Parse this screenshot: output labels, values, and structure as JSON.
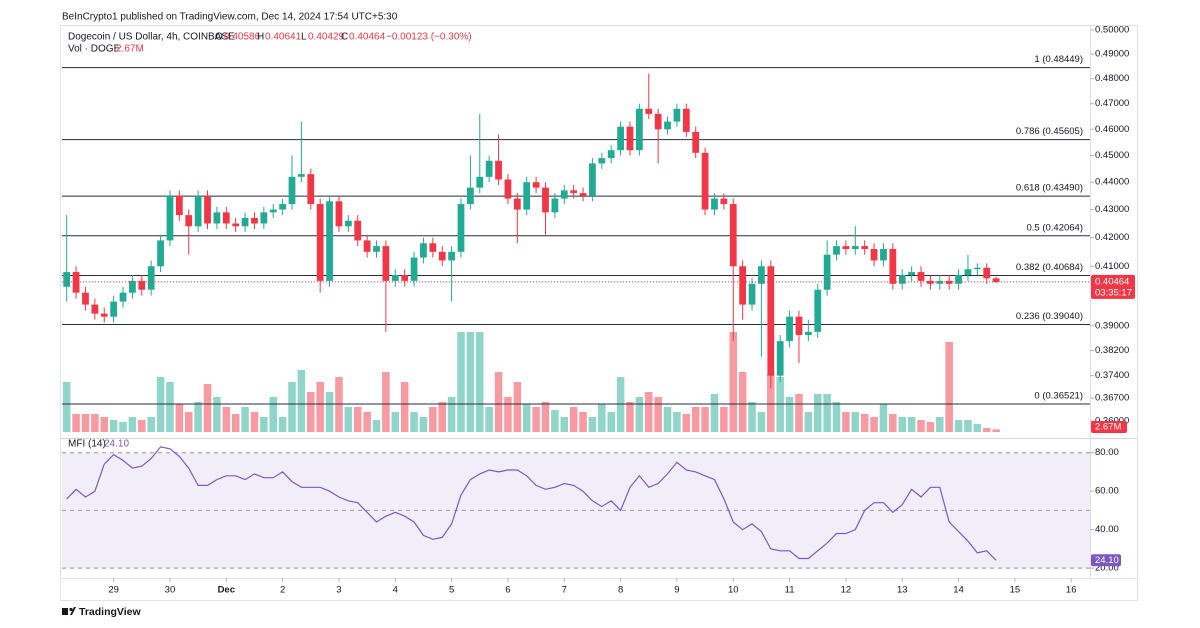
{
  "header": {
    "published": "BeInCrypto1 published on TradingView.com, Dec 14, 2024 17:54 UTC+5:30"
  },
  "footer": {
    "brand": "TradingView"
  },
  "chart_data": {
    "type": "candlestick",
    "title": "Dogecoin / US Dollar, 4h, COINBASE",
    "ohlc_letters": [
      "O",
      "H",
      "L",
      "C"
    ],
    "change_text": "−0.00123 (−0.30%)",
    "countdown": "03:35:17",
    "up_color": "#22ab94",
    "down_color": "#f23645",
    "log_scale": true,
    "grid": false,
    "xlim": [
      -0.5,
      109
    ],
    "xticks": [
      {
        "value": 5,
        "label": "29"
      },
      {
        "value": 11,
        "label": "30"
      },
      {
        "value": 17,
        "label": "Dec"
      },
      {
        "value": 23,
        "label": "2"
      },
      {
        "value": 29,
        "label": "3"
      },
      {
        "value": 35,
        "label": "4"
      },
      {
        "value": 41,
        "label": "5"
      },
      {
        "value": 47,
        "label": "6"
      },
      {
        "value": 53,
        "label": "7"
      },
      {
        "value": 59,
        "label": "8"
      },
      {
        "value": 65,
        "label": "9"
      },
      {
        "value": 71,
        "label": "10"
      },
      {
        "value": 77,
        "label": "11"
      },
      {
        "value": 83,
        "label": "12"
      },
      {
        "value": 89,
        "label": "13"
      },
      {
        "value": 95,
        "label": "14"
      },
      {
        "value": 101,
        "label": "15"
      },
      {
        "value": 107,
        "label": "16"
      }
    ],
    "ylim": [
      0.3567,
      0.5034
    ],
    "yticks": [
      {
        "value": 0.5,
        "label": "0.50000"
      },
      {
        "value": 0.49,
        "label": "0.49000"
      },
      {
        "value": 0.48,
        "label": "0.48000"
      },
      {
        "value": 0.47,
        "label": "0.47000"
      },
      {
        "value": 0.46,
        "label": "0.46000"
      },
      {
        "value": 0.45,
        "label": "0.45000"
      },
      {
        "value": 0.44,
        "label": "0.44000"
      },
      {
        "value": 0.43,
        "label": "0.43000"
      },
      {
        "value": 0.42,
        "label": "0.42000"
      },
      {
        "value": 0.41,
        "label": "0.41000"
      },
      {
        "value": 0.39,
        "label": "0.39000"
      },
      {
        "value": 0.382,
        "label": "0.38200"
      },
      {
        "value": 0.374,
        "label": "0.37400"
      },
      {
        "value": 0.367,
        "label": "0.36700"
      },
      {
        "value": 0.36,
        "label": "0.36000"
      }
    ],
    "fib_levels": [
      {
        "value": 0.48449,
        "label": "1 (0.48449)"
      },
      {
        "value": 0.45605,
        "label": "0.786 (0.45605)"
      },
      {
        "value": 0.4349,
        "label": "0.618 (0.43490)"
      },
      {
        "value": 0.42064,
        "label": "0.5 (0.42064)"
      },
      {
        "value": 0.40684,
        "label": "0.382 (0.40684)"
      },
      {
        "value": 0.3904,
        "label": "0.236 (0.39040)"
      },
      {
        "value": 0.36521,
        "label": "0 (0.36521)"
      }
    ],
    "candles": {
      "open": [
        0.403,
        0.408,
        0.401,
        0.397,
        0.394,
        0.393,
        0.398,
        0.401,
        0.405,
        0.402,
        0.41,
        0.419,
        0.435,
        0.428,
        0.424,
        0.435,
        0.425,
        0.429,
        0.425,
        0.424,
        0.427,
        0.425,
        0.429,
        0.43,
        0.432,
        0.442,
        0.443,
        0.432,
        0.405,
        0.433,
        0.424,
        0.426,
        0.419,
        0.415,
        0.417,
        0.405,
        0.407,
        0.405,
        0.413,
        0.418,
        0.415,
        0.412,
        0.415,
        0.432,
        0.438,
        0.442,
        0.448,
        0.441,
        0.434,
        0.43,
        0.44,
        0.438,
        0.429,
        0.434,
        0.437,
        0.436,
        0.435,
        0.447,
        0.449,
        0.452,
        0.461,
        0.452,
        0.468,
        0.466,
        0.46,
        0.463,
        0.468,
        0.459,
        0.451,
        0.43,
        0.434,
        0.432,
        0.41,
        0.397,
        0.404,
        0.41,
        0.374,
        0.385,
        0.393,
        0.387,
        0.388,
        0.402,
        0.414,
        0.417,
        0.416,
        0.417,
        0.416,
        0.412,
        0.416,
        0.404,
        0.407,
        0.408,
        0.405,
        0.404,
        0.405,
        0.404,
        0.407,
        0.409,
        0.4095,
        0.40586
      ],
      "high": [
        0.428,
        0.41,
        0.403,
        0.399,
        0.396,
        0.4,
        0.403,
        0.407,
        0.407,
        0.412,
        0.421,
        0.437,
        0.437,
        0.43,
        0.437,
        0.437,
        0.431,
        0.431,
        0.427,
        0.429,
        0.429,
        0.431,
        0.432,
        0.434,
        0.45,
        0.463,
        0.445,
        0.434,
        0.435,
        0.435,
        0.428,
        0.428,
        0.421,
        0.419,
        0.419,
        0.409,
        0.409,
        0.415,
        0.42,
        0.42,
        0.417,
        0.417,
        0.434,
        0.45,
        0.466,
        0.45,
        0.458,
        0.443,
        0.436,
        0.442,
        0.442,
        0.44,
        0.436,
        0.439,
        0.439,
        0.438,
        0.449,
        0.451,
        0.454,
        0.463,
        0.463,
        0.47,
        0.482,
        0.468,
        0.465,
        0.47,
        0.47,
        0.461,
        0.453,
        0.436,
        0.436,
        0.434,
        0.412,
        0.406,
        0.412,
        0.412,
        0.387,
        0.395,
        0.395,
        0.392,
        0.404,
        0.419,
        0.419,
        0.419,
        0.424,
        0.419,
        0.418,
        0.418,
        0.418,
        0.409,
        0.41,
        0.41,
        0.407,
        0.407,
        0.407,
        0.409,
        0.414,
        0.411,
        0.411,
        0.40641
      ],
      "low": [
        0.398,
        0.399,
        0.395,
        0.392,
        0.391,
        0.391,
        0.396,
        0.399,
        0.4,
        0.4,
        0.408,
        0.417,
        0.426,
        0.414,
        0.422,
        0.423,
        0.423,
        0.423,
        0.422,
        0.422,
        0.423,
        0.423,
        0.427,
        0.428,
        0.43,
        0.44,
        0.43,
        0.401,
        0.403,
        0.422,
        0.422,
        0.417,
        0.413,
        0.413,
        0.388,
        0.403,
        0.403,
        0.403,
        0.411,
        0.413,
        0.41,
        0.398,
        0.413,
        0.43,
        0.436,
        0.44,
        0.439,
        0.432,
        0.418,
        0.428,
        0.436,
        0.421,
        0.427,
        0.432,
        0.434,
        0.433,
        0.433,
        0.445,
        0.447,
        0.45,
        0.45,
        0.45,
        0.464,
        0.447,
        0.458,
        0.461,
        0.457,
        0.449,
        0.428,
        0.428,
        0.43,
        0.385,
        0.392,
        0.395,
        0.38,
        0.37,
        0.372,
        0.383,
        0.378,
        0.385,
        0.386,
        0.4,
        0.412,
        0.414,
        0.414,
        0.414,
        0.41,
        0.41,
        0.402,
        0.402,
        0.405,
        0.403,
        0.402,
        0.402,
        0.402,
        0.402,
        0.405,
        0.407,
        0.404,
        0.40429
      ],
      "close": [
        0.408,
        0.401,
        0.397,
        0.394,
        0.393,
        0.398,
        0.401,
        0.405,
        0.402,
        0.41,
        0.419,
        0.435,
        0.428,
        0.424,
        0.435,
        0.425,
        0.429,
        0.425,
        0.424,
        0.427,
        0.425,
        0.429,
        0.43,
        0.432,
        0.442,
        0.443,
        0.432,
        0.405,
        0.433,
        0.424,
        0.426,
        0.419,
        0.415,
        0.417,
        0.405,
        0.407,
        0.405,
        0.413,
        0.418,
        0.415,
        0.412,
        0.415,
        0.432,
        0.438,
        0.442,
        0.448,
        0.441,
        0.434,
        0.43,
        0.44,
        0.438,
        0.429,
        0.434,
        0.437,
        0.436,
        0.435,
        0.447,
        0.449,
        0.452,
        0.461,
        0.452,
        0.468,
        0.466,
        0.46,
        0.463,
        0.468,
        0.459,
        0.451,
        0.43,
        0.434,
        0.432,
        0.41,
        0.397,
        0.404,
        0.41,
        0.374,
        0.385,
        0.393,
        0.387,
        0.388,
        0.402,
        0.414,
        0.417,
        0.416,
        0.417,
        0.416,
        0.412,
        0.416,
        0.404,
        0.407,
        0.408,
        0.405,
        0.404,
        0.405,
        0.404,
        0.407,
        0.409,
        0.4095,
        0.40586,
        0.40464
      ]
    },
    "volume": {
      "name": "Vol · DOGE",
      "values": [
        50,
        18,
        18,
        18,
        15,
        12,
        10,
        15,
        12,
        15,
        55,
        50,
        28,
        20,
        30,
        48,
        35,
        25,
        18,
        25,
        20,
        15,
        35,
        15,
        50,
        62,
        40,
        50,
        40,
        55,
        25,
        25,
        20,
        12,
        60,
        20,
        50,
        20,
        15,
        25,
        30,
        35,
        100,
        100,
        100,
        25,
        60,
        35,
        50,
        28,
        25,
        30,
        22,
        15,
        25,
        20,
        15,
        28,
        20,
        55,
        30,
        35,
        40,
        35,
        25,
        20,
        18,
        25,
        25,
        38,
        25,
        100,
        60,
        30,
        20,
        58,
        55,
        35,
        38,
        20,
        38,
        38,
        30,
        20,
        20,
        18,
        15,
        28,
        18,
        15,
        15,
        12,
        10,
        15,
        90,
        12,
        12,
        8,
        4,
        2.67
      ],
      "value_labels": [
        null,
        null,
        null,
        null,
        null,
        null,
        null,
        null,
        null,
        null,
        null,
        null,
        null,
        null,
        null,
        null,
        null,
        null,
        null,
        null,
        null,
        null,
        null,
        null,
        null,
        null,
        null,
        null,
        null,
        null,
        null,
        null,
        null,
        null,
        null,
        null,
        null,
        null,
        null,
        null,
        null,
        null,
        null,
        null,
        null,
        null,
        null,
        null,
        null,
        null,
        null,
        null,
        null,
        null,
        null,
        null,
        null,
        null,
        null,
        null,
        null,
        null,
        null,
        null,
        null,
        null,
        null,
        null,
        null,
        null,
        null,
        null,
        null,
        null,
        null,
        null,
        null,
        null,
        null,
        null,
        null,
        null,
        null,
        null,
        null,
        null,
        null,
        null,
        null,
        null,
        null,
        null,
        null,
        null,
        null,
        null,
        null,
        null,
        null,
        "2.67M"
      ]
    },
    "mfi": {
      "name": "MFI (14)",
      "color": "#7e57c2",
      "ylim": [
        18,
        84
      ],
      "yticks": [
        {
          "value": 80,
          "label": "80.00"
        },
        {
          "value": 60,
          "label": "60.00"
        },
        {
          "value": 40,
          "label": "40.00"
        },
        {
          "value": 20,
          "label": "20.00"
        }
      ],
      "bands": {
        "upper": 80,
        "middle": 50,
        "lower": 20
      },
      "values": [
        56,
        61,
        57,
        60,
        74,
        79,
        76,
        72,
        73,
        77,
        83,
        82,
        78,
        72,
        63,
        63,
        66,
        68,
        68,
        66,
        69,
        67,
        67,
        70,
        65,
        62,
        62,
        62,
        60,
        57,
        55,
        54,
        49,
        44,
        47,
        49,
        47,
        44,
        37,
        35,
        36,
        43,
        58,
        66,
        69,
        71,
        70,
        71,
        71,
        68,
        63,
        61,
        62,
        64,
        63,
        60,
        55,
        52,
        55,
        50,
        62,
        68,
        62,
        64,
        69,
        75,
        71,
        70,
        68,
        66,
        56,
        44,
        40,
        43,
        39,
        30,
        29,
        29,
        25,
        25,
        29,
        33,
        38,
        38,
        40,
        50,
        54,
        54,
        49,
        53,
        61,
        57,
        62,
        62,
        44,
        39,
        34,
        28,
        29,
        24.1
      ],
      "value_labels": [
        null,
        null,
        null,
        null,
        null,
        null,
        null,
        null,
        null,
        null,
        null,
        null,
        null,
        null,
        null,
        null,
        null,
        null,
        null,
        null,
        null,
        null,
        null,
        null,
        null,
        null,
        null,
        null,
        null,
        null,
        null,
        null,
        null,
        null,
        null,
        null,
        null,
        null,
        null,
        null,
        null,
        null,
        null,
        null,
        null,
        null,
        null,
        null,
        null,
        null,
        null,
        null,
        null,
        null,
        null,
        null,
        null,
        null,
        null,
        null,
        null,
        null,
        null,
        null,
        null,
        null,
        null,
        null,
        null,
        null,
        null,
        null,
        null,
        null,
        null,
        null,
        null,
        null,
        null,
        null,
        null,
        null,
        null,
        null,
        null,
        null,
        null,
        null,
        null,
        null,
        null,
        null,
        null,
        null,
        null,
        null,
        null,
        null,
        null,
        "24.10"
      ]
    }
  }
}
